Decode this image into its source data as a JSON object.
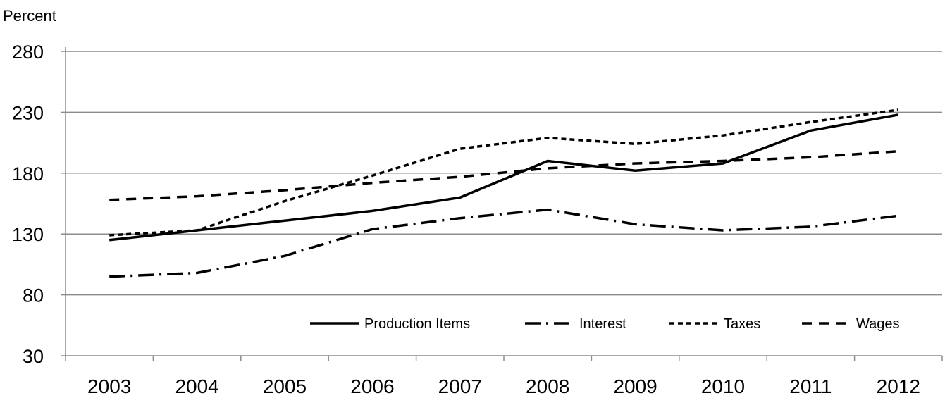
{
  "chart_data": {
    "type": "line",
    "title": "",
    "xlabel": "",
    "ylabel": "Percent",
    "ylim": [
      30,
      280
    ],
    "yticks": [
      "280",
      "230",
      "180",
      "130",
      "80",
      "30"
    ],
    "categories": [
      "2003",
      "2004",
      "2005",
      "2006",
      "2007",
      "2008",
      "2009",
      "2010",
      "2011",
      "2012"
    ],
    "grid": "horizontal",
    "legend_position": "bottom-right",
    "series": [
      {
        "name": "Production Items",
        "style": "solid",
        "color": "#000000",
        "values": [
          125,
          133,
          141,
          149,
          160,
          190,
          182,
          188,
          215,
          228
        ]
      },
      {
        "name": "Interest",
        "style": "dash-dot",
        "color": "#000000",
        "values": [
          95,
          98,
          112,
          134,
          143,
          150,
          138,
          133,
          136,
          145
        ]
      },
      {
        "name": "Taxes",
        "style": "short-dash",
        "color": "#000000",
        "values": [
          129,
          133,
          157,
          178,
          200,
          209,
          204,
          211,
          222,
          232
        ]
      },
      {
        "name": "Wages",
        "style": "long-dash",
        "color": "#000000",
        "values": [
          158,
          161,
          166,
          172,
          177,
          184,
          188,
          190,
          193,
          198
        ]
      }
    ]
  }
}
